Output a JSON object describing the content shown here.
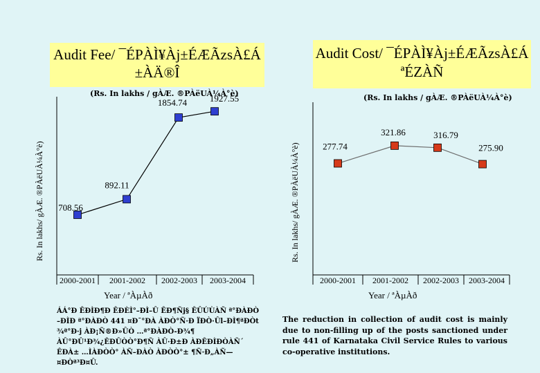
{
  "left_panel": {
    "title_line1": "Audit Fee/ ¯ÉPÀÌ¥Àj±ÉÆÃzsÀ£Á",
    "title_line2": "±ÀÄ®Î",
    "unit_note": "(Rs. In lakhs / gÀÆ. ®PÀëUÀ¼À°è)",
    "note": "ÁÁ°Ð ÊÐÌÐ¶Ð ÊÐÈÌ°–ÐÌ–Û ÊÐ¶Ñj§ ÊÛÚÙÀÑ ª°ÐÀÐÒ –ÐÌÐ ª°ÐÀÐÒ 441 ¤Ð¯°ÐÀ ÀÐÒ°Ñ·Ð ÏÐÒ·Ûl–ÐÌ¶ªÐÒt ¾ª°Ð·j ÀÐ¡Ñ®Ð»ÛÒ …ª°ÐÀÐÒ-Ð¾¶ ÀÛ°ÐÛ¹Ð¾¿ÊÐÛÒÒ°Ð¶Ñ ÀÛ·Ð±Ð ÀÐÊÐÌÐÒÀÑ´ ÊÐÀ± …ÌÀÐÒÒ° ÀÑ–ÐÀÒ ÀÐÒÒ°± ¶Ñ·Ð„ÀÑ—¤ÐÒª³Ð¤Û.",
    "chart_data": {
      "type": "line",
      "categories": [
        "2000-2001",
        "2001-2002",
        "2002-2003",
        "2003-2004"
      ],
      "series": [
        {
          "values": [
            708.56,
            892.11,
            1854.74,
            1927.55
          ]
        }
      ],
      "data_labels": [
        "708.56",
        "892.11",
        "1854.74",
        "1927.55"
      ],
      "ylabel": "Rs. In lakhs/ gÀÆ. ®PÀëUÀ¼À°è)",
      "xlabel": "Year / ªÀµÀð",
      "ylim": [
        0,
        2100
      ],
      "marker_color": "#2f3fd0",
      "line_color": "#000000",
      "grid": false,
      "legend": "none"
    }
  },
  "right_panel": {
    "title_line1": "Audit Cost/ ¯ÉPÀÌ¥Àj±ÉÆÃzsÀ£Á",
    "title_line2": "ªÉZÀÑ",
    "unit_note": "(Rs. In lakhs / gÀÆ. ®PÀëUÀ¼À°è)",
    "note": "The reduction in collection of audit cost is mainly due to non-filling up of the posts sanctioned under rule 441 of Karnataka Civil Service Rules to various co-operative institutions.",
    "chart_data": {
      "type": "line",
      "categories": [
        "2000-2001",
        "2001-2002",
        "2002-2003",
        "2003-2004"
      ],
      "series": [
        {
          "values": [
            277.74,
            321.86,
            316.79,
            275.9
          ]
        }
      ],
      "data_labels": [
        "277.74",
        "321.86",
        "316.79",
        "275.90"
      ],
      "ylabel": "Rs. In lakhs/ gÀÆ. ®PÀëUÀ¼À°è)",
      "xlabel": "Year / ªÀµÀð",
      "ylim": [
        0,
        430
      ],
      "marker_color": "#d63a1a",
      "line_color": "#6d6d6d",
      "grid": false,
      "legend": "none"
    }
  }
}
